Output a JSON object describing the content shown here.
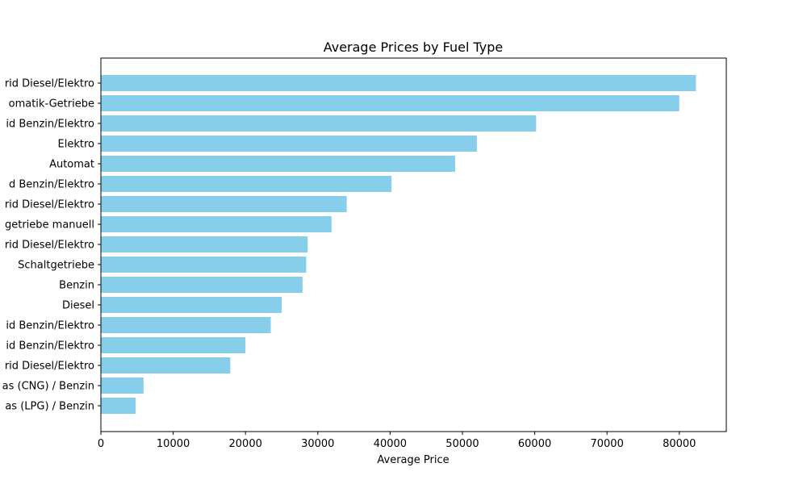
{
  "chart_data": {
    "type": "bar",
    "orientation": "horizontal",
    "title": "Average Prices by Fuel Type",
    "xlabel": "Average Price",
    "ylabel": "",
    "xlim": [
      0,
      86500
    ],
    "xticks": [
      0,
      10000,
      20000,
      30000,
      40000,
      50000,
      60000,
      70000,
      80000
    ],
    "grid": false,
    "bar_color": "#87CEEB",
    "categories": [
      "rid Diesel/Elektro",
      "omatik-Getriebe",
      "id Benzin/Elektro",
      "Elektro",
      "Automat",
      "d Benzin/Elektro",
      "rid Diesel/Elektro",
      "getriebe manuell",
      "rid Diesel/Elektro",
      "Schaltgetriebe",
      "Benzin",
      "Diesel",
      "id Benzin/Elektro",
      "id Benzin/Elektro",
      "rid Diesel/Elektro",
      "as (CNG) / Benzin",
      "as (LPG) / Benzin"
    ],
    "values": [
      82300,
      80000,
      60200,
      52000,
      49000,
      40200,
      34000,
      31900,
      28600,
      28400,
      27900,
      25000,
      23500,
      20000,
      17900,
      5900,
      4800
    ]
  }
}
